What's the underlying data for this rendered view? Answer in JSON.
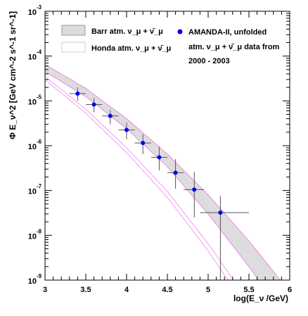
{
  "chart_data": {
    "type": "scatter",
    "title": "",
    "xlabel": "log(E_ν /GeV)",
    "ylabel": "Φ E_ν^2 [GeV cm^-2 s^-1 sr^-1]",
    "xlim": [
      3,
      6
    ],
    "ylim": [
      1e-09,
      0.001
    ],
    "yscale": "log",
    "x_ticks": [
      "3",
      "3.5",
      "4",
      "4.5",
      "5",
      "5.5",
      "6"
    ],
    "y_ticks": [
      {
        "base": "10",
        "exp": "-3"
      },
      {
        "base": "10",
        "exp": "-4"
      },
      {
        "base": "10",
        "exp": "-5"
      },
      {
        "base": "10",
        "exp": "-6"
      },
      {
        "base": "10",
        "exp": "-7"
      },
      {
        "base": "10",
        "exp": "-8"
      },
      {
        "base": "10",
        "exp": "-9"
      }
    ],
    "grid": false,
    "legend_position": "top",
    "colors": {
      "data": "#0000ee",
      "barr_fill": "#dddddd",
      "barr_edge": "#ee88ee",
      "honda_edge": "#ee88ee"
    },
    "legend": {
      "barr": "Barr atm. ν_μ + ν̄_μ",
      "honda": "Honda atm. ν_μ + ν̄_μ",
      "data_line1": "AMANDA-II, unfolded",
      "data_line2": "atm. ν_μ + ν̄_μ data from",
      "data_line3": "2000 - 2003"
    },
    "series": [
      {
        "name": "Barr atm. ν_μ + ν̄_μ",
        "kind": "band",
        "x": [
          3.0,
          3.5,
          4.0,
          4.5,
          5.0,
          5.5,
          6.0
        ],
        "upper": [
          6.5e-05,
          1.9e-05,
          4e-06,
          6.5e-07,
          8e-08,
          7.5e-09,
          5.5e-10
        ],
        "lower": [
          4.5e-05,
          1.25e-05,
          2.4e-06,
          3.4e-07,
          3e-08,
          2e-09,
          1.1e-10
        ]
      },
      {
        "name": "Honda atm. ν_μ + ν̄_μ",
        "kind": "band",
        "x": [
          3.0,
          3.5,
          4.0,
          4.5,
          5.0,
          5.5
        ],
        "upper": [
          3.5e-05,
          6.5e-06,
          9e-07,
          9.5e-08,
          6.5e-09,
          3.2e-10
        ],
        "lower": [
          3e-05,
          5.3e-06,
          7e-07,
          7e-08,
          4.5e-09,
          2e-10
        ]
      },
      {
        "name": "AMANDA-II, unfolded atm. ν_μ + ν̄_μ data from 2000 - 2003",
        "kind": "points",
        "x": [
          3.4,
          3.6,
          3.8,
          4.0,
          4.2,
          4.4,
          4.6,
          4.83,
          5.15
        ],
        "y": [
          1.45e-05,
          8.3e-06,
          4.6e-06,
          2.25e-06,
          1.15e-06,
          5.5e-07,
          2.5e-07,
          1.05e-07,
          3.2e-08
        ],
        "x_low": [
          3.3,
          3.5,
          3.7,
          3.9,
          4.1,
          4.3,
          4.5,
          4.7,
          4.9
        ],
        "x_high": [
          3.5,
          3.7,
          3.9,
          4.1,
          4.3,
          4.5,
          4.7,
          4.95,
          5.5
        ],
        "y_low": [
          1e-05,
          5.6e-06,
          3e-06,
          1.4e-06,
          6.5e-07,
          2.8e-07,
          1.1e-07,
          2.5e-08,
          1e-09
        ],
        "y_high": [
          2e-05,
          1.15e-05,
          6.3e-06,
          3.3e-06,
          1.8e-06,
          9.5e-07,
          5e-07,
          2.6e-07,
          7.5e-08
        ]
      }
    ]
  }
}
